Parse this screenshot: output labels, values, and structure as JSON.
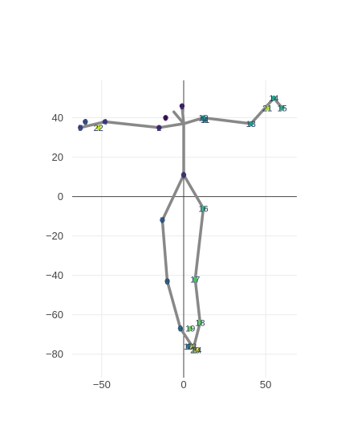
{
  "chart_data": {
    "type": "scatter",
    "title": "",
    "xlabel": "",
    "ylabel": "",
    "xlim": [
      -68,
      69
    ],
    "ylim": [
      -92,
      59
    ],
    "x_ticks": [
      -50,
      0,
      50
    ],
    "y_ticks": [
      -80,
      -60,
      -40,
      -20,
      0,
      20,
      40
    ],
    "x_tick_labels": [
      "−50",
      "0",
      "50"
    ],
    "y_tick_labels": [
      "−80",
      "−60",
      "−40",
      "−20",
      "0",
      "20",
      "40"
    ],
    "grid": true,
    "zero_lines": true,
    "line_color": "#888888",
    "colorscale": "viridis",
    "points": [
      {
        "id": "0",
        "x": -11,
        "y": 40
      },
      {
        "id": "1",
        "x": -1,
        "y": 46
      },
      {
        "id": "2",
        "x": -15,
        "y": 35
      },
      {
        "id": "3",
        "x": 0,
        "y": 11
      },
      {
        "id": "4",
        "x": -48,
        "y": 38
      },
      {
        "id": "5",
        "x": -63,
        "y": 35
      },
      {
        "id": "6",
        "x": -60,
        "y": 38
      },
      {
        "id": "7",
        "x": -13,
        "y": -12
      },
      {
        "id": "8",
        "x": -10,
        "y": -43
      },
      {
        "id": "9",
        "x": -2,
        "y": -67
      },
      {
        "id": "10",
        "x": 3,
        "y": -76
      },
      {
        "id": "11",
        "x": 13,
        "y": 39
      },
      {
        "id": "12",
        "x": 12,
        "y": 40
      },
      {
        "id": "13",
        "x": 41,
        "y": 37
      },
      {
        "id": "14",
        "x": 55,
        "y": 50
      },
      {
        "id": "15",
        "x": 60,
        "y": 45
      },
      {
        "id": "16",
        "x": 12,
        "y": -6
      },
      {
        "id": "17",
        "x": 7,
        "y": -42
      },
      {
        "id": "18",
        "x": 10,
        "y": -64
      },
      {
        "id": "19",
        "x": 4,
        "y": -67
      },
      {
        "id": "20",
        "x": 7,
        "y": -78
      },
      {
        "id": "21",
        "x": 51,
        "y": 45
      },
      {
        "id": "22",
        "x": -52,
        "y": 35
      },
      {
        "id": "23",
        "x": 5,
        "y": -76
      },
      {
        "id": "24",
        "x": 8,
        "y": -78
      }
    ],
    "skeleton_paths": [
      [
        [
          -63,
          35
        ],
        [
          -48,
          38
        ],
        [
          -15,
          35
        ],
        [
          0,
          37
        ],
        [
          -1,
          46
        ]
      ],
      [
        [
          0,
          37
        ],
        [
          -6,
          43
        ]
      ],
      [
        [
          0,
          37
        ],
        [
          12,
          40
        ],
        [
          41,
          37
        ],
        [
          55,
          50
        ],
        [
          60,
          45
        ]
      ],
      [
        [
          0,
          37
        ],
        [
          0,
          11
        ],
        [
          -13,
          -12
        ],
        [
          -10,
          -43
        ],
        [
          -2,
          -67
        ],
        [
          6,
          -77
        ]
      ],
      [
        [
          0,
          11
        ],
        [
          12,
          -6
        ],
        [
          7,
          -42
        ],
        [
          10,
          -64
        ],
        [
          6,
          -77
        ]
      ]
    ]
  }
}
